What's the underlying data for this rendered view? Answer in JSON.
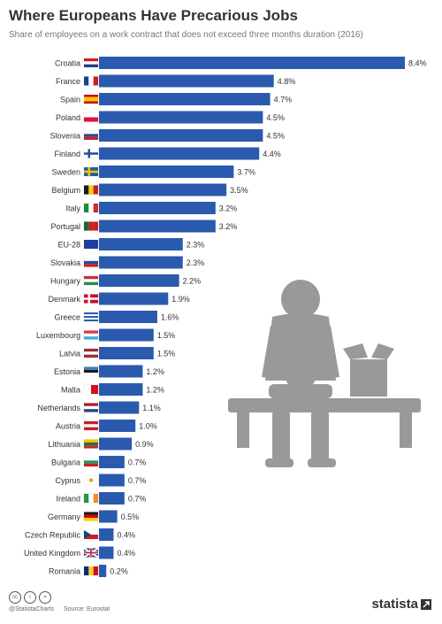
{
  "header": {
    "title": "Where Europeans Have Precarious Jobs",
    "subtitle": "Share of employees on a work contract that does not exceed three months duration (2016)"
  },
  "chart_data": {
    "type": "bar",
    "orientation": "horizontal",
    "title": "Where Europeans Have Precarious Jobs",
    "subtitle": "Share of employees on a work contract that does not exceed three months duration (2016)",
    "xlabel": "",
    "ylabel": "",
    "xlim": [
      0,
      8.4
    ],
    "grid": false,
    "categories": [
      "Croatia",
      "France",
      "Spain",
      "Poland",
      "Slovenia",
      "Finland",
      "Sweden",
      "Belgium",
      "Italy",
      "Portugal",
      "EU-28",
      "Slovakia",
      "Hungary",
      "Denmark",
      "Greece",
      "Luxembourg",
      "Latvia",
      "Estonia",
      "Malta",
      "Netherlands",
      "Austria",
      "Lithuania",
      "Bulgaria",
      "Cyprus",
      "Ireland",
      "Germany",
      "Czech Republic",
      "United Kingdom",
      "Romania"
    ],
    "values": [
      8.4,
      4.8,
      4.7,
      4.5,
      4.5,
      4.4,
      3.7,
      3.5,
      3.2,
      3.2,
      2.3,
      2.3,
      2.2,
      1.9,
      1.6,
      1.5,
      1.5,
      1.2,
      1.2,
      1.1,
      1.0,
      0.9,
      0.7,
      0.7,
      0.7,
      0.5,
      0.4,
      0.4,
      0.2
    ],
    "value_labels": [
      "8.4%",
      "4.8%",
      "4.7%",
      "4.5%",
      "4.5%",
      "4.4%",
      "3.7%",
      "3.5%",
      "3.2%",
      "3.2%",
      "2.3%",
      "2.3%",
      "2.2%",
      "1.9%",
      "1.6%",
      "1.5%",
      "1.5%",
      "1.2%",
      "1.2%",
      "1.1%",
      "1.0%",
      "0.9%",
      "0.7%",
      "0.7%",
      "0.7%",
      "0.5%",
      "0.4%",
      "0.4%",
      "0.2%"
    ],
    "flags": [
      {
        "type": "h",
        "colors": [
          "#d01c1f",
          "#ffffff",
          "#1f3f8f"
        ]
      },
      {
        "type": "v",
        "colors": [
          "#1f3f8f",
          "#ffffff",
          "#d01c1f"
        ]
      },
      {
        "type": "h",
        "colors": [
          "#c60b1e",
          "#ffc400",
          "#ffc400",
          "#c60b1e"
        ]
      },
      {
        "type": "h",
        "colors": [
          "#ffffff",
          "#dc143c"
        ]
      },
      {
        "type": "h",
        "colors": [
          "#ffffff",
          "#1f4fa0",
          "#d01c1f"
        ]
      },
      {
        "type": "nordic",
        "colors": [
          "#ffffff",
          "#1f4f9f"
        ]
      },
      {
        "type": "nordic",
        "colors": [
          "#1f5fa0",
          "#f8c400"
        ]
      },
      {
        "type": "v",
        "colors": [
          "#1a1a1a",
          "#f5d000",
          "#d01c1f"
        ]
      },
      {
        "type": "v",
        "colors": [
          "#1a8f3a",
          "#ffffff",
          "#ce2b37"
        ]
      },
      {
        "type": "v",
        "colors": [
          "#0a6f2a",
          "#d01c1f",
          "#d01c1f"
        ]
      },
      {
        "type": "h",
        "colors": [
          "#1f3fa0"
        ]
      },
      {
        "type": "h",
        "colors": [
          "#ffffff",
          "#1f4fa0",
          "#d01c1f"
        ]
      },
      {
        "type": "h",
        "colors": [
          "#ce2939",
          "#ffffff",
          "#2a8a4a"
        ]
      },
      {
        "type": "nordic",
        "colors": [
          "#c8102e",
          "#ffffff"
        ]
      },
      {
        "type": "h",
        "colors": [
          "#2a60b0",
          "#ffffff",
          "#2a60b0",
          "#ffffff",
          "#2a60b0"
        ]
      },
      {
        "type": "h",
        "colors": [
          "#e8343c",
          "#ffffff",
          "#3ab0e0"
        ]
      },
      {
        "type": "h",
        "colors": [
          "#9e3039",
          "#ffffff",
          "#9e3039"
        ]
      },
      {
        "type": "h",
        "colors": [
          "#3a7fc0",
          "#1a1a1a",
          "#ffffff"
        ]
      },
      {
        "type": "v",
        "colors": [
          "#ffffff",
          "#cf1020"
        ]
      },
      {
        "type": "h",
        "colors": [
          "#ae1c28",
          "#ffffff",
          "#21468b"
        ]
      },
      {
        "type": "h",
        "colors": [
          "#d01c1f",
          "#ffffff",
          "#d01c1f"
        ]
      },
      {
        "type": "h",
        "colors": [
          "#f5c400",
          "#1a7a3a",
          "#c1272d"
        ]
      },
      {
        "type": "h",
        "colors": [
          "#ffffff",
          "#1a9a5a",
          "#d01c1f"
        ]
      },
      {
        "type": "h",
        "colors": [
          "#ffffff",
          "#ffffff",
          "#ffffff"
        ],
        "dot": "#e0a020"
      },
      {
        "type": "v",
        "colors": [
          "#1a9a4a",
          "#ffffff",
          "#f28c28"
        ]
      },
      {
        "type": "h",
        "colors": [
          "#1a1a1a",
          "#dd0000",
          "#ffce00"
        ]
      },
      {
        "type": "czech",
        "colors": [
          "#ffffff",
          "#d01c1f",
          "#11457e"
        ]
      },
      {
        "type": "uk",
        "colors": [
          "#1f3f8f",
          "#ffffff",
          "#d01c1f"
        ]
      },
      {
        "type": "v",
        "colors": [
          "#002b7f",
          "#fcd116",
          "#ce1126"
        ]
      }
    ],
    "bar_color": "#2a5aad"
  },
  "illustration": {
    "color": "#999999"
  },
  "footer": {
    "cc_icons": [
      "cc",
      "i",
      "="
    ],
    "handle": "@StatistaCharts",
    "source": "Source: Eurostat",
    "brand": "statista"
  }
}
